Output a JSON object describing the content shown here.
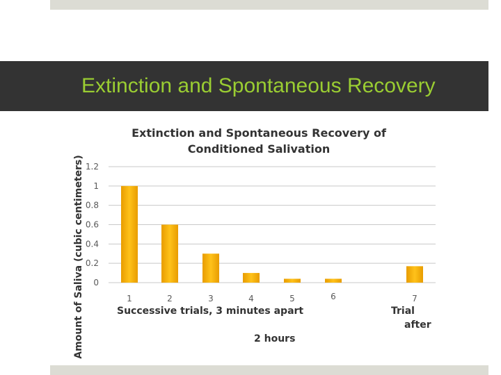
{
  "slide": {
    "title": "Extinction and Spontaneous Recovery"
  },
  "chart_data": {
    "type": "bar",
    "title": "Extinction and Spontaneous Recovery of Conditioned Salivation",
    "ylabel": "Amount of Saliva (cubic centimeters)",
    "xlabel": "Successive trials, 3 minutes apart",
    "annotations": [
      "Trial",
      "after",
      "2 hours"
    ],
    "categories": [
      "1",
      "2",
      "3",
      "4",
      "5",
      "6",
      "7"
    ],
    "values": [
      1.0,
      0.6,
      0.3,
      0.1,
      0.04,
      0.04,
      0.17
    ],
    "ylim": [
      0,
      1.2
    ],
    "yticks": [
      "0",
      "0.2",
      "0.4",
      "0.6",
      "0.8",
      "1",
      "1.2"
    ],
    "grid": true,
    "bar_color": "#f0a800"
  }
}
